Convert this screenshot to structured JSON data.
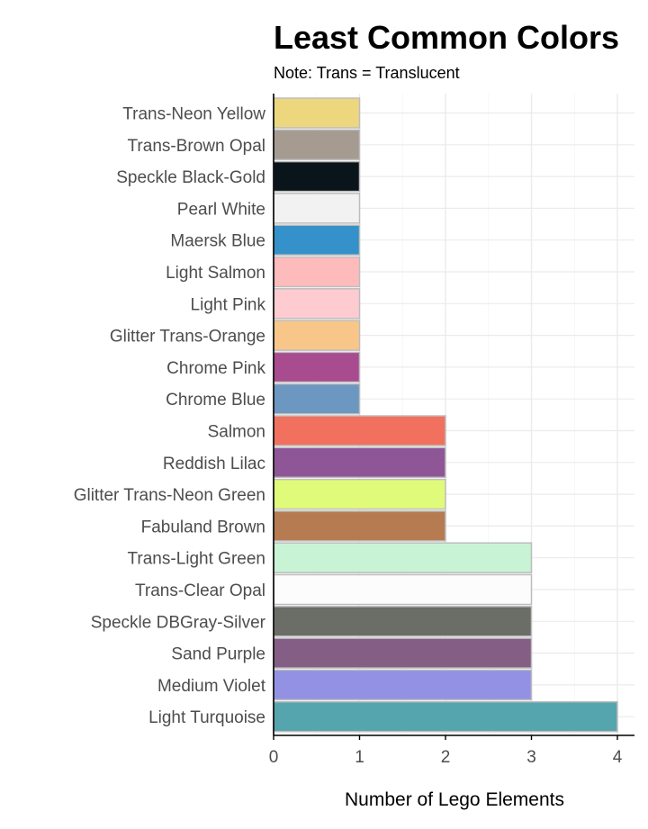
{
  "chart_data": {
    "type": "bar",
    "orientation": "horizontal",
    "title": "Least Common Colors",
    "subtitle": "Note: Trans = Translucent",
    "xlabel": "Number of Lego Elements",
    "ylabel": "",
    "xlim": [
      0,
      4.2
    ],
    "x_ticks": [
      0,
      1,
      2,
      3,
      4
    ],
    "grid": true,
    "legend": "none",
    "categories": [
      "Trans-Neon Yellow",
      "Trans-Brown Opal",
      "Speckle Black-Gold",
      "Pearl White",
      "Maersk Blue",
      "Light Salmon",
      "Light Pink",
      "Glitter Trans-Orange",
      "Chrome Pink",
      "Chrome Blue",
      "Salmon",
      "Reddish Lilac",
      "Glitter Trans-Neon Green",
      "Fabuland Brown",
      "Trans-Light Green",
      "Trans-Clear Opal",
      "Speckle DBGray-Silver",
      "Sand Purple",
      "Medium Violet",
      "Light Turquoise"
    ],
    "values": [
      1,
      1,
      1,
      1,
      1,
      1,
      1,
      1,
      1,
      1,
      2,
      2,
      2,
      2,
      3,
      3,
      3,
      3,
      3,
      4
    ],
    "colors": [
      "#ecd77f",
      "#a69b91",
      "#0a151b",
      "#f2f2f2",
      "#3591c9",
      "#febbbc",
      "#fdcbd0",
      "#f9c68a",
      "#a94b8f",
      "#6b97c1",
      "#f2705e",
      "#8e5597",
      "#e0fa7a",
      "#b67b51",
      "#c8f3d5",
      "#fcfcfc",
      "#6b6e67",
      "#845e84",
      "#9391e4",
      "#55a5af"
    ],
    "bar_outline_color": "#bdbdbd",
    "grid_color": "#ebebeb",
    "axis_color": "#000000"
  }
}
